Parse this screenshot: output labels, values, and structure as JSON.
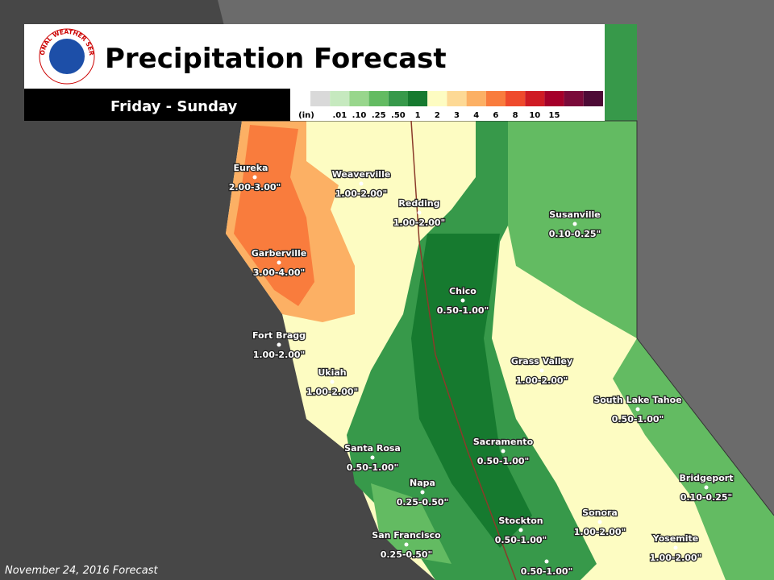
{
  "header": {
    "title": "Precipitation Forecast",
    "subtitle": "Friday - Sunday",
    "logo_text": "NATIONAL WEATHER SERVICE"
  },
  "legend": {
    "labels": [
      "(in)",
      ".01",
      ".10",
      ".25",
      ".50",
      "1",
      "2",
      "3",
      "4",
      "6",
      "8",
      "10",
      "15"
    ],
    "colors": [
      "#d9d9d9",
      "#c6e9bf",
      "#98d68c",
      "#63bb62",
      "#37994a",
      "#167a2f",
      "#fdfcc2",
      "#fdd995",
      "#fcb064",
      "#f97c3d",
      "#ef4a2c",
      "#cf1b24",
      "#a5002a",
      "#7a0a3a",
      "#4d0a36"
    ]
  },
  "cities": [
    {
      "name": "Eureka",
      "value": "2.00-3.00\""
    },
    {
      "name": "Weaverville",
      "value": "1.00-2.00\""
    },
    {
      "name": "Redding",
      "value": "1.00-2.00\""
    },
    {
      "name": "Susanville",
      "value": "0.10-0.25\""
    },
    {
      "name": "Garberville",
      "value": "3.00-4.00\""
    },
    {
      "name": "Chico",
      "value": "0.50-1.00\""
    },
    {
      "name": "Fort Bragg",
      "value": "1.00-2.00\""
    },
    {
      "name": "Grass Valley",
      "value": "1.00-2.00\""
    },
    {
      "name": "Ukiah",
      "value": "1.00-2.00\""
    },
    {
      "name": "South Lake Tahoe",
      "value": "0.50-1.00\""
    },
    {
      "name": "Santa Rosa",
      "value": "0.50-1.00\""
    },
    {
      "name": "Sacramento",
      "value": "0.50-1.00\""
    },
    {
      "name": "Bridgeport",
      "value": "0.10-0.25\""
    },
    {
      "name": "Napa",
      "value": "0.25-0.50\""
    },
    {
      "name": "Sonora",
      "value": "1.00-2.00\""
    },
    {
      "name": "Stockton",
      "value": "0.50-1.00\""
    },
    {
      "name": "San Francisco",
      "value": "0.25-0.50\""
    },
    {
      "name": "Yosemite",
      "value": "1.00-2.00\""
    },
    {
      "name": null,
      "value": "0.50-1.00\""
    }
  ],
  "footer": "November 24, 2016 Forecast"
}
